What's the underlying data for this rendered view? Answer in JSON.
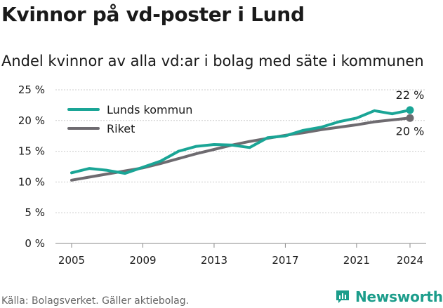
{
  "header": {
    "title": "Kvinnor på vd-poster i Lund",
    "subtitle": "Andel kvinnor av alla vd:ar i bolag med säte i kommunen"
  },
  "footer": {
    "source": "Källa: Bolagsverket. Gäller aktiebolag.",
    "brand": "Newsworthy"
  },
  "colors": {
    "lund": "#1aa596",
    "riket": "#6e6b70",
    "grid": "#cccccc",
    "brand": "#1c9d8b"
  },
  "chart_data": {
    "type": "line",
    "title": "Kvinnor på vd-poster i Lund",
    "subtitle": "Andel kvinnor av alla vd:ar i bolag med säte i kommunen",
    "xlabel": "",
    "ylabel": "",
    "xlim": [
      2005,
      2024
    ],
    "ylim": [
      0,
      25
    ],
    "yticks": [
      0,
      5,
      10,
      15,
      20,
      25
    ],
    "ytick_labels": [
      "0 %",
      "5 %",
      "10 %",
      "15 %",
      "20 %",
      "25 %"
    ],
    "xticks": [
      2005,
      2009,
      2013,
      2017,
      2021,
      2024
    ],
    "xtick_labels": [
      "2005",
      "2009",
      "2013",
      "2017",
      "2021",
      "2024"
    ],
    "grid": "horizontal",
    "legend": "top-left",
    "series": [
      {
        "name": "Lunds kommun",
        "color": "#1aa596",
        "x": [
          2005,
          2006,
          2007,
          2008,
          2009,
          2010,
          2011,
          2012,
          2013,
          2014,
          2015,
          2016,
          2017,
          2018,
          2019,
          2020,
          2021,
          2022,
          2023,
          2024
        ],
        "values": [
          11.5,
          12.2,
          11.9,
          11.4,
          12.4,
          13.4,
          15.0,
          15.8,
          16.1,
          16.0,
          15.6,
          17.2,
          17.5,
          18.4,
          18.9,
          19.8,
          20.4,
          21.6,
          21.1,
          21.7
        ],
        "end_label": "22 %"
      },
      {
        "name": "Riket",
        "color": "#6e6b70",
        "x": [
          2005,
          2006,
          2007,
          2008,
          2009,
          2010,
          2011,
          2012,
          2013,
          2014,
          2015,
          2016,
          2017,
          2018,
          2019,
          2020,
          2021,
          2022,
          2023,
          2024
        ],
        "values": [
          10.3,
          10.8,
          11.3,
          11.8,
          12.3,
          13.0,
          13.8,
          14.6,
          15.3,
          16.0,
          16.6,
          17.1,
          17.6,
          18.0,
          18.5,
          18.9,
          19.3,
          19.8,
          20.1,
          20.4
        ],
        "end_label": "20 %"
      }
    ]
  }
}
